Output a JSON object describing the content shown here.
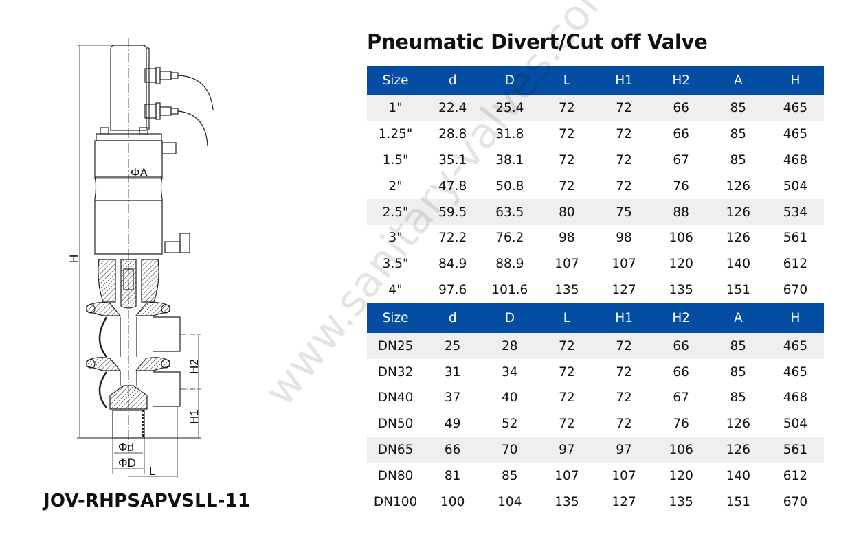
{
  "title": "Pneumatic Divert/Cut off Valve",
  "model_code": "JOV-RHPSAPVSLL-11",
  "watermark": "www.sanitary-valves.com",
  "colors": {
    "header_bg": "#034ea2",
    "header_text": "#ffffff",
    "shaded_row": "#efefef"
  },
  "drawing": {
    "labels": {
      "phiA": "ΦA",
      "H": "H",
      "H1": "H1",
      "H2": "H2",
      "phid": "Φd",
      "phiD": "ΦD",
      "L": "L"
    }
  },
  "columns": [
    "Size",
    "d",
    "D",
    "L",
    "H1",
    "H2",
    "A",
    "H"
  ],
  "inch_table": {
    "rows": [
      [
        "1\"",
        "22.4",
        "25.4",
        "72",
        "72",
        "66",
        "85",
        "465"
      ],
      [
        "1.25\"",
        "28.8",
        "31.8",
        "72",
        "72",
        "66",
        "85",
        "465"
      ],
      [
        "1.5\"",
        "35.1",
        "38.1",
        "72",
        "72",
        "67",
        "85",
        "468"
      ],
      [
        "2\"",
        "47.8",
        "50.8",
        "72",
        "72",
        "76",
        "126",
        "504"
      ],
      [
        "2.5\"",
        "59.5",
        "63.5",
        "80",
        "75",
        "88",
        "126",
        "534"
      ],
      [
        "3\"",
        "72.2",
        "76.2",
        "98",
        "98",
        "106",
        "126",
        "561"
      ],
      [
        "3.5\"",
        "84.9",
        "88.9",
        "107",
        "107",
        "120",
        "140",
        "612"
      ],
      [
        "4\"",
        "97.6",
        "101.6",
        "135",
        "127",
        "135",
        "151",
        "670"
      ]
    ]
  },
  "dn_table": {
    "rows": [
      [
        "DN25",
        "25",
        "28",
        "72",
        "72",
        "66",
        "85",
        "465"
      ],
      [
        "DN32",
        "31",
        "34",
        "72",
        "72",
        "66",
        "85",
        "465"
      ],
      [
        "DN40",
        "37",
        "40",
        "72",
        "72",
        "67",
        "85",
        "468"
      ],
      [
        "DN50",
        "49",
        "52",
        "72",
        "72",
        "76",
        "126",
        "504"
      ],
      [
        "DN65",
        "66",
        "70",
        "97",
        "97",
        "106",
        "126",
        "561"
      ],
      [
        "DN80",
        "81",
        "85",
        "107",
        "107",
        "120",
        "140",
        "612"
      ],
      [
        "DN100",
        "100",
        "104",
        "135",
        "127",
        "135",
        "151",
        "670"
      ]
    ]
  }
}
